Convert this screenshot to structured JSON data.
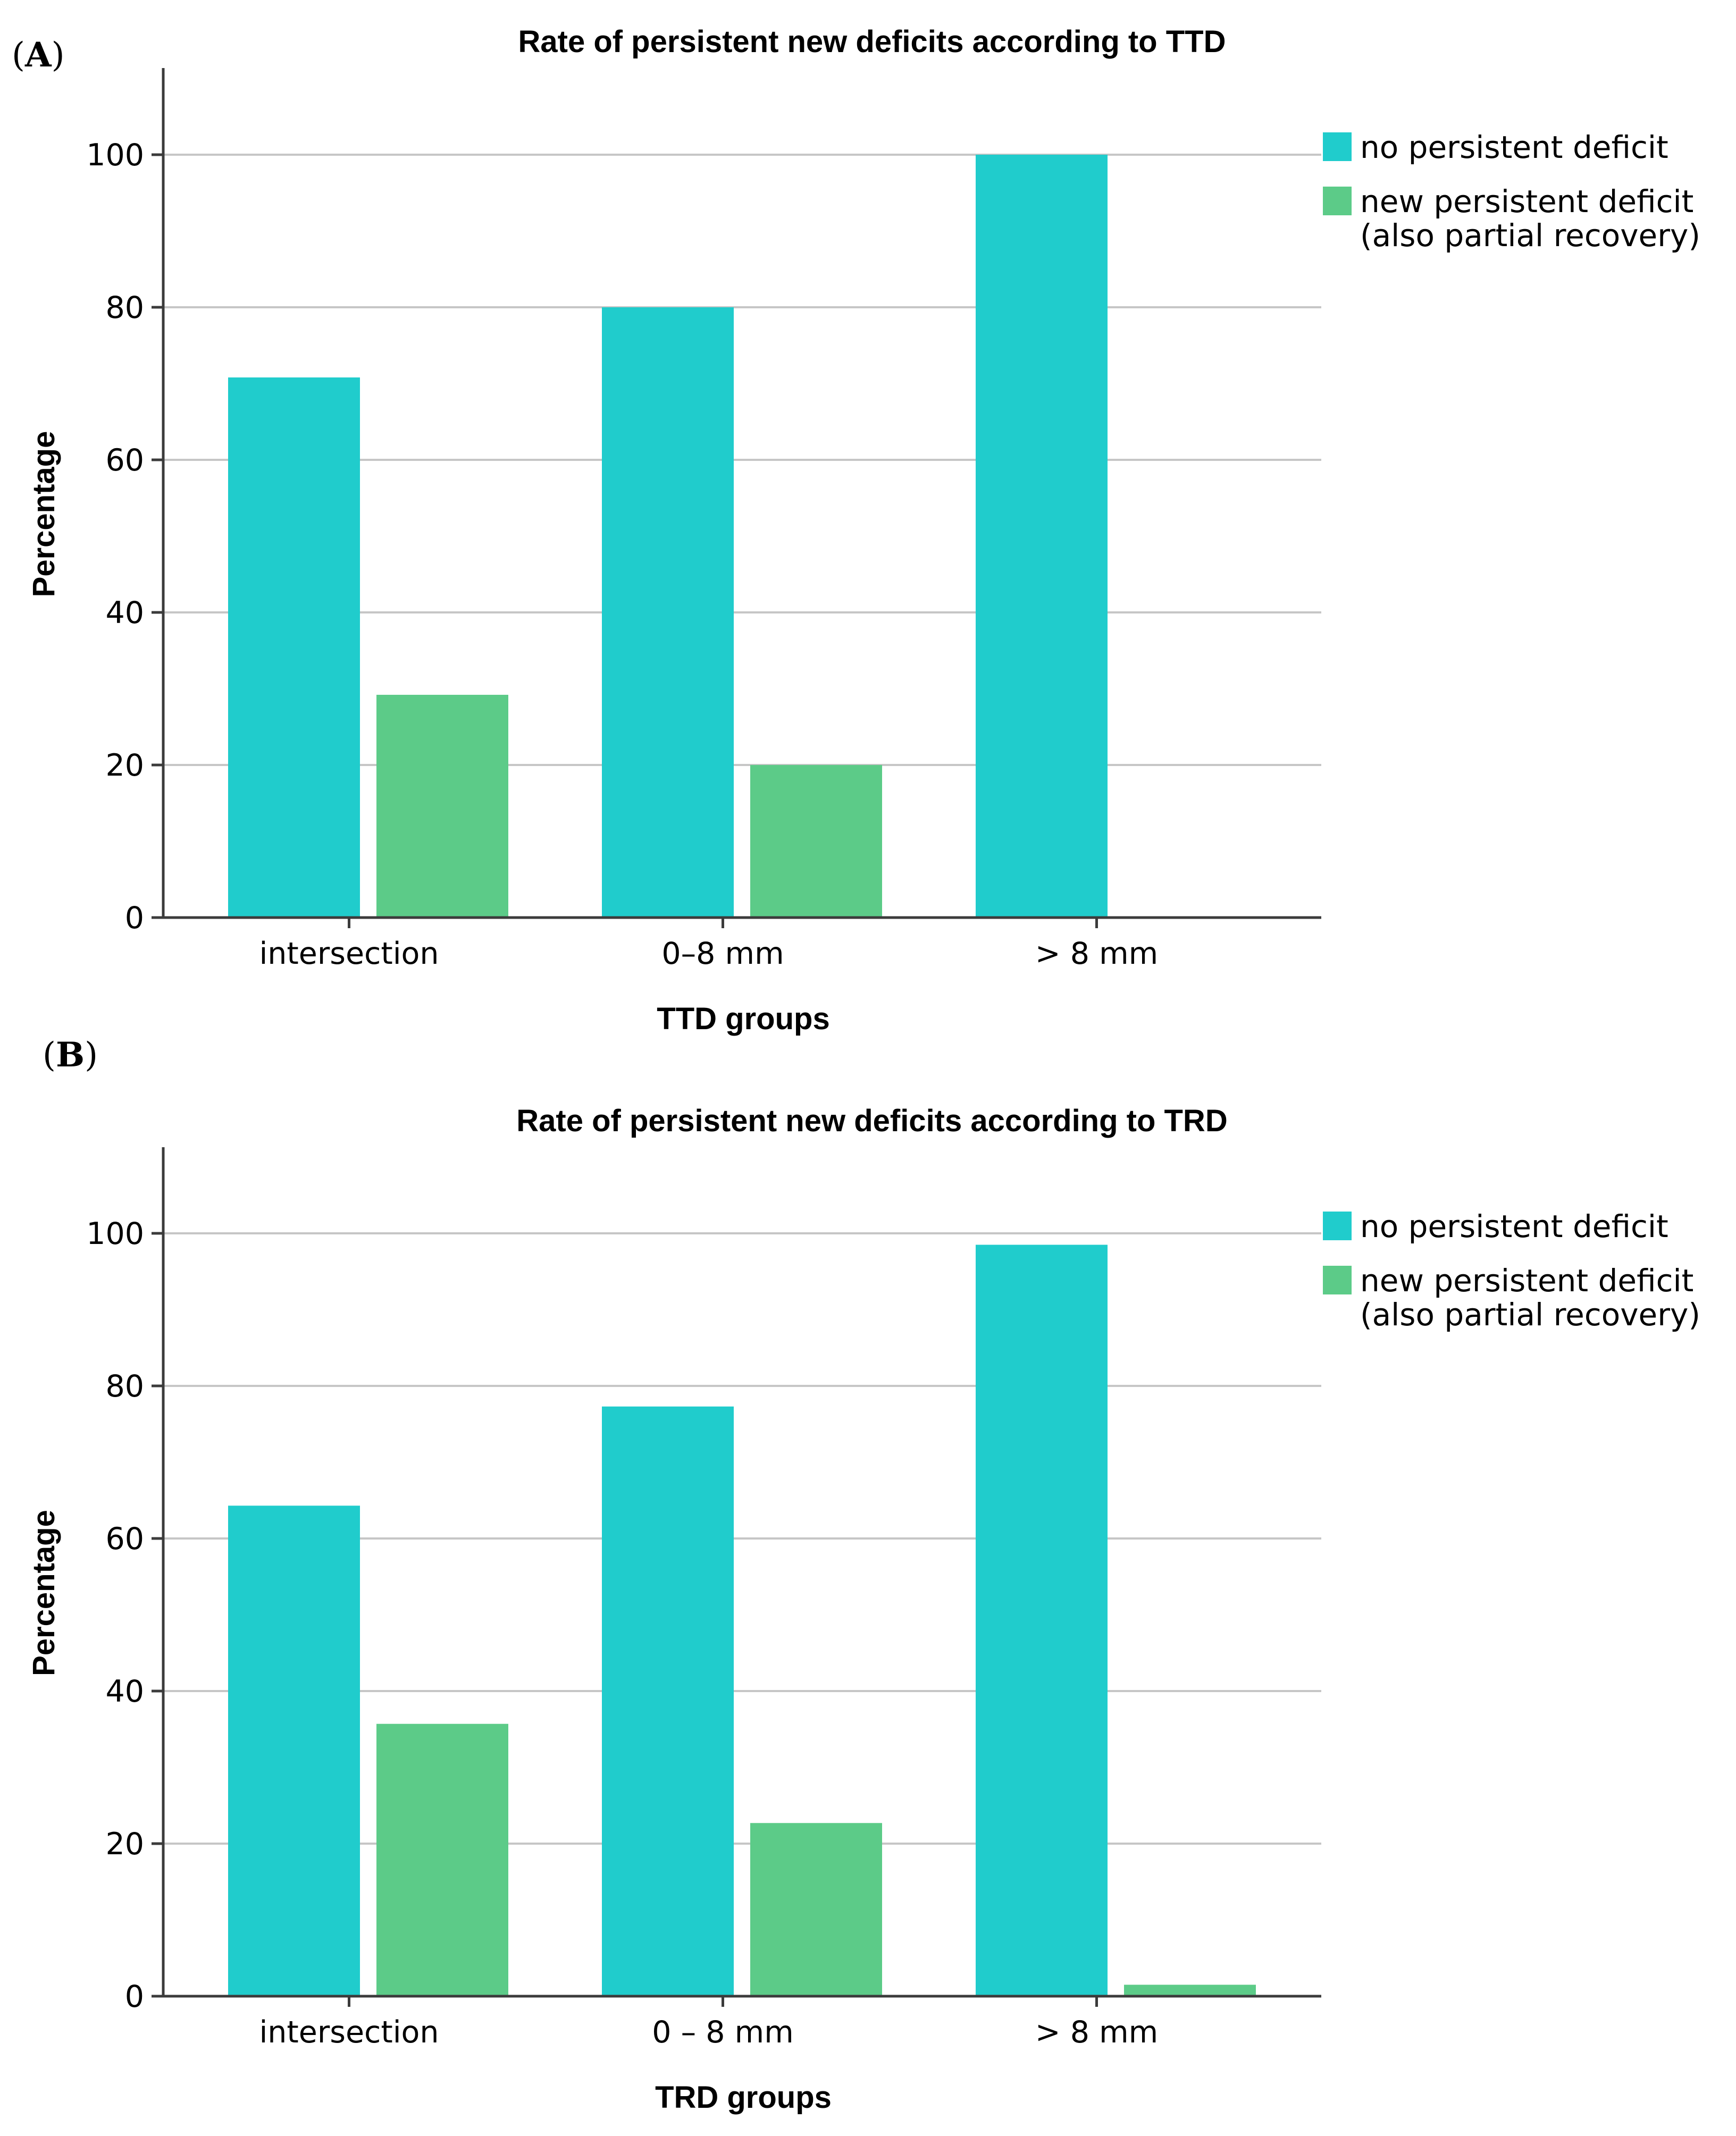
{
  "colors": {
    "series_1": "#20cccc",
    "series_2": "#5ccb88"
  },
  "chart_data": [
    {
      "panel_label": "A",
      "type": "bar",
      "title": "Rate of persistent new deficits according to TTD",
      "xlabel": "TTD groups",
      "ylabel": "Percentage",
      "ylim": [
        0,
        110
      ],
      "yticks": [
        0,
        20,
        40,
        60,
        80,
        100
      ],
      "grid": true,
      "legend_position": "top-right",
      "categories": [
        "intersection",
        "0–8 mm",
        "> 8 mm"
      ],
      "series": [
        {
          "name": "no persistent deficit",
          "values": [
            70.8,
            80,
            100
          ]
        },
        {
          "name": "new persistent deficit\n(also partial recovery)",
          "values": [
            29.2,
            20,
            0
          ]
        }
      ]
    },
    {
      "panel_label": "B",
      "type": "bar",
      "title": "Rate of persistent new deficits according to TRD",
      "xlabel": "TRD groups",
      "ylabel": "Percentage",
      "ylim": [
        0,
        110
      ],
      "yticks": [
        0,
        20,
        40,
        60,
        80,
        100
      ],
      "grid": true,
      "legend_position": "top-right",
      "categories": [
        "intersection",
        "0 – 8 mm",
        "> 8 mm"
      ],
      "series": [
        {
          "name": "no persistent deficit",
          "values": [
            64.3,
            77.3,
            98.5
          ]
        },
        {
          "name": "new persistent deficit\n(also partial recovery)",
          "values": [
            35.7,
            22.7,
            1.5
          ]
        }
      ]
    }
  ]
}
